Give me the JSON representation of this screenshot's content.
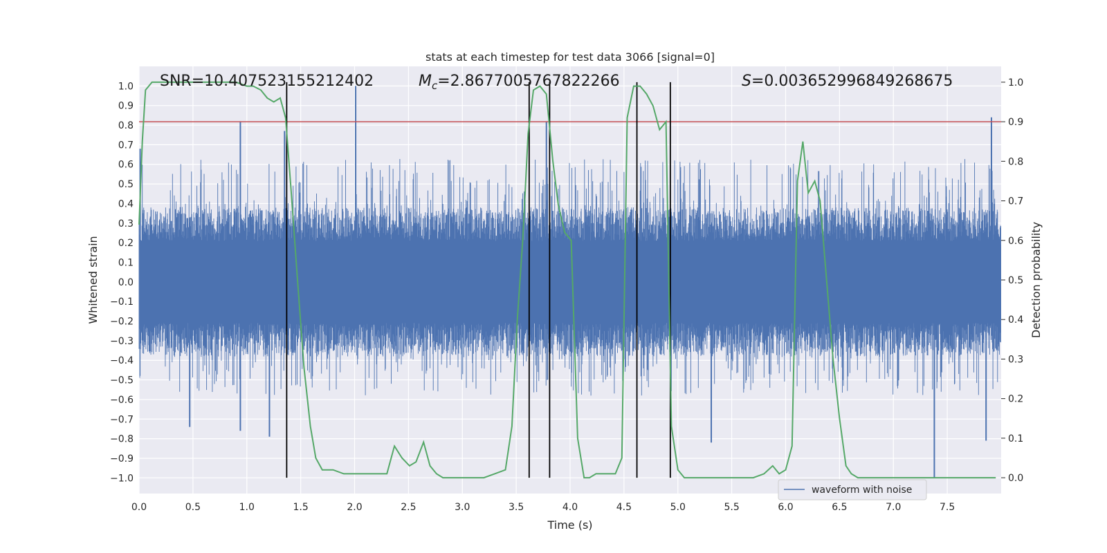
{
  "chart_data": {
    "type": "line",
    "title": "stats at each timestep for test data 3066 [signal=0]",
    "xlabel": "Time (s)",
    "ylabel_left": "Whitened strain",
    "ylabel_right": "Detection probability",
    "xlim": [
      0.0,
      8.0
    ],
    "ylim_left": [
      -1.08,
      1.1
    ],
    "ylim_right": [
      -0.04,
      1.04
    ],
    "x_ticks": [
      0.0,
      0.5,
      1.0,
      1.5,
      2.0,
      2.5,
      3.0,
      3.5,
      4.0,
      4.5,
      5.0,
      5.5,
      6.0,
      6.5,
      7.0,
      7.5
    ],
    "x_tick_labels": [
      "0.0",
      "0.5",
      "1.0",
      "1.5",
      "2.0",
      "2.5",
      "3.0",
      "3.5",
      "4.0",
      "4.5",
      "5.0",
      "5.5",
      "6.0",
      "6.5",
      "7.0",
      "7.5"
    ],
    "y_left_ticks": [
      -1.0,
      -0.9,
      -0.8,
      -0.7,
      -0.6,
      -0.5,
      -0.4,
      -0.3,
      -0.2,
      -0.1,
      0.0,
      0.1,
      0.2,
      0.3,
      0.4,
      0.5,
      0.6,
      0.7,
      0.8,
      0.9,
      1.0
    ],
    "y_left_tick_labels": [
      "−1.0",
      "−0.9",
      "−0.8",
      "−0.7",
      "−0.6",
      "−0.5",
      "−0.4",
      "−0.3",
      "−0.2",
      "−0.1",
      "0.0",
      "0.1",
      "0.2",
      "0.3",
      "0.4",
      "0.5",
      "0.6",
      "0.7",
      "0.8",
      "0.9",
      "1.0"
    ],
    "y_right_ticks": [
      0.0,
      0.1,
      0.2,
      0.3,
      0.4,
      0.5,
      0.6,
      0.7,
      0.8,
      0.9,
      1.0
    ],
    "y_right_tick_labels": [
      "0.0",
      "0.1",
      "0.2",
      "0.3",
      "0.4",
      "0.5",
      "0.6",
      "0.7",
      "0.8",
      "0.9",
      "1.0"
    ],
    "annotations": [
      {
        "text": "SNR=10.407523155212402",
        "x": 0.2,
        "y": 1.03
      },
      {
        "text": "M_c=2.8677005767822266",
        "prefix": "M",
        "sub": "c",
        "rest": "=2.8677005767822266",
        "x": 2.6,
        "y": 1.03
      },
      {
        "text": "S=0.003652996849268675",
        "prefix": "S",
        "rest": "=0.003652996849268675",
        "x": 5.6,
        "y": 1.03
      }
    ],
    "threshold": {
      "value": 0.9,
      "axis": "right",
      "color": "#c44e52"
    },
    "vertical_lines": [
      1.37,
      3.62,
      3.81,
      4.62,
      4.93
    ],
    "legend": {
      "entries": [
        "waveform with noise"
      ],
      "placement": "lower-right"
    },
    "series": [
      {
        "name": "waveform with noise",
        "axis": "left",
        "color": "#4c72b0",
        "style": "dense-noise",
        "noise_envelope": {
          "core": 0.38,
          "spike_max": 1.0,
          "spike_min": -1.0
        },
        "notable_spikes": [
          {
            "x": 0.01,
            "y": 0.68
          },
          {
            "x": 0.47,
            "y": -0.74
          },
          {
            "x": 0.94,
            "y": 0.82
          },
          {
            "x": 0.94,
            "y": -0.76
          },
          {
            "x": 1.21,
            "y": -0.79
          },
          {
            "x": 1.35,
            "y": 0.77
          },
          {
            "x": 2.01,
            "y": 1.0
          },
          {
            "x": 3.78,
            "y": 0.82
          },
          {
            "x": 5.31,
            "y": -0.82
          },
          {
            "x": 7.38,
            "y": -1.0
          },
          {
            "x": 7.91,
            "y": 0.84
          },
          {
            "x": 7.86,
            "y": -0.81
          }
        ]
      },
      {
        "name": "detection probability",
        "axis": "right",
        "color": "#55a868",
        "x": [
          0.0,
          0.03,
          0.06,
          0.12,
          0.2,
          0.3,
          0.4,
          0.5,
          0.6,
          0.7,
          0.8,
          0.9,
          1.0,
          1.06,
          1.13,
          1.19,
          1.25,
          1.31,
          1.36,
          1.41,
          1.47,
          1.53,
          1.59,
          1.64,
          1.7,
          1.8,
          1.9,
          2.0,
          2.1,
          2.2,
          2.3,
          2.37,
          2.44,
          2.51,
          2.57,
          2.64,
          2.7,
          2.76,
          2.82,
          2.9,
          3.0,
          3.1,
          3.2,
          3.3,
          3.4,
          3.46,
          3.51,
          3.56,
          3.61,
          3.66,
          3.72,
          3.78,
          3.84,
          3.89,
          3.95,
          4.01,
          4.07,
          4.13,
          4.18,
          4.24,
          4.3,
          4.36,
          4.42,
          4.48,
          4.53,
          4.59,
          4.65,
          4.71,
          4.77,
          4.83,
          4.89,
          4.94,
          5.0,
          5.06,
          5.12,
          5.18,
          5.3,
          5.5,
          5.7,
          5.8,
          5.88,
          5.94,
          6.0,
          6.06,
          6.11,
          6.16,
          6.21,
          6.27,
          6.32,
          6.38,
          6.44,
          6.5,
          6.56,
          6.61,
          6.67,
          6.73,
          6.8,
          6.9,
          7.0,
          7.2,
          7.4,
          7.6,
          7.8,
          7.95
        ],
        "y": [
          0.64,
          0.85,
          0.98,
          1.0,
          1.0,
          1.0,
          1.0,
          1.0,
          1.0,
          1.0,
          1.0,
          1.0,
          0.99,
          0.99,
          0.98,
          0.96,
          0.95,
          0.96,
          0.91,
          0.73,
          0.5,
          0.28,
          0.13,
          0.05,
          0.02,
          0.02,
          0.01,
          0.01,
          0.01,
          0.01,
          0.01,
          0.08,
          0.05,
          0.03,
          0.04,
          0.09,
          0.03,
          0.01,
          0.0,
          0.0,
          0.0,
          0.0,
          0.0,
          0.01,
          0.02,
          0.13,
          0.4,
          0.6,
          0.87,
          0.98,
          0.99,
          0.97,
          0.8,
          0.69,
          0.62,
          0.6,
          0.1,
          0.0,
          0.0,
          0.01,
          0.01,
          0.01,
          0.01,
          0.05,
          0.91,
          0.99,
          0.99,
          0.97,
          0.94,
          0.88,
          0.9,
          0.13,
          0.02,
          0.0,
          0.0,
          0.0,
          0.0,
          0.0,
          0.0,
          0.01,
          0.03,
          0.01,
          0.02,
          0.08,
          0.75,
          0.85,
          0.72,
          0.75,
          0.7,
          0.5,
          0.3,
          0.15,
          0.03,
          0.01,
          0.0,
          0.0,
          0.0,
          0.0,
          0.0,
          0.0,
          0.0,
          0.0,
          0.0,
          0.0
        ]
      }
    ]
  }
}
